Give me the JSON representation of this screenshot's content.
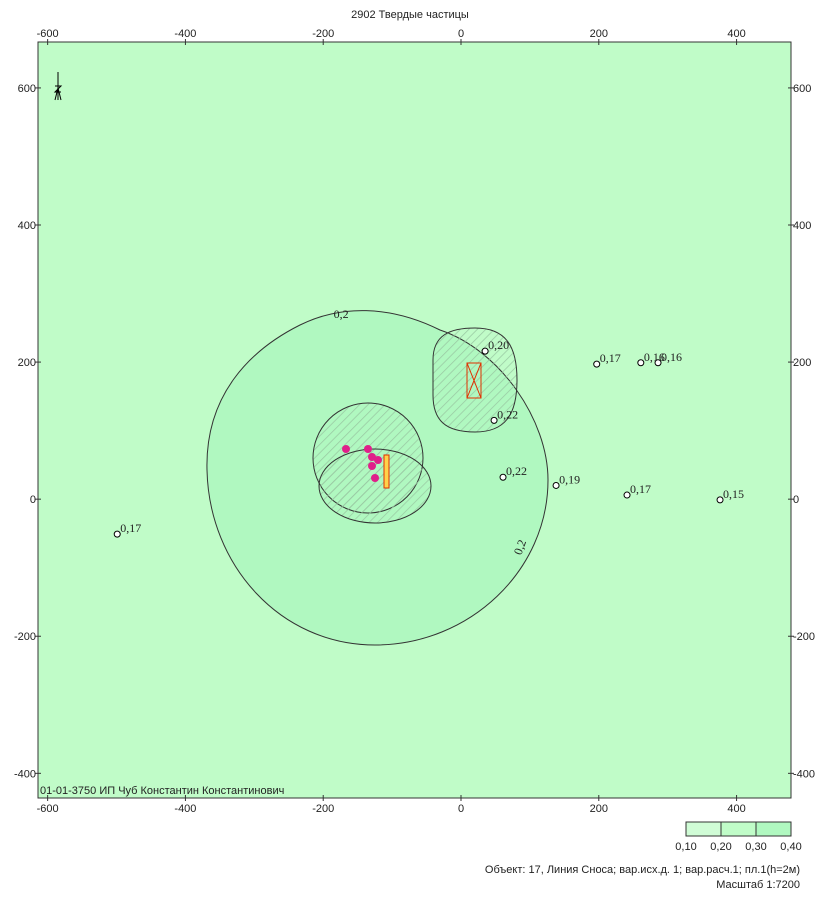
{
  "title": "2902 Твердые частицы",
  "plot": {
    "xlim": [
      -614,
      479
    ],
    "ylim": [
      -436,
      667
    ],
    "xticks": [
      -600,
      -400,
      -200,
      0,
      200,
      400
    ],
    "yticks": [
      -400,
      -200,
      0,
      200,
      400,
      600
    ],
    "contour_labels": [
      {
        "label": "0,2",
        "x": -174,
        "y": 264
      },
      {
        "label": "0,2",
        "x": 91,
        "y": -72
      }
    ],
    "points": [
      {
        "label": "0,17",
        "x": -499,
        "y": -51
      },
      {
        "label": "0,20",
        "x": 35,
        "y": 216
      },
      {
        "label": "0,22",
        "x": 48,
        "y": 115
      },
      {
        "label": "0,22",
        "x": 61,
        "y": 32
      },
      {
        "label": "0,19",
        "x": 138,
        "y": 20
      },
      {
        "label": "0,17",
        "x": 197,
        "y": 197
      },
      {
        "label": "0,16",
        "x": 261,
        "y": 199
      },
      {
        "label": "0,16",
        "x": 286,
        "y": 199
      },
      {
        "label": "0,17",
        "x": 241,
        "y": 6
      },
      {
        "label": "0,15",
        "x": 376,
        "y": -1
      }
    ]
  },
  "caption": "01-01-3750 ИП Чуб Константин Константинович",
  "legend": {
    "labels": [
      "0,10",
      "0,20",
      "0,30",
      "0,40"
    ]
  },
  "footer": [
    "Объект: 17, Линия Сноса; вар.исх.д. 1; вар.расч.1; пл.1(h=2м)",
    "Масштаб 1:7200"
  ]
}
